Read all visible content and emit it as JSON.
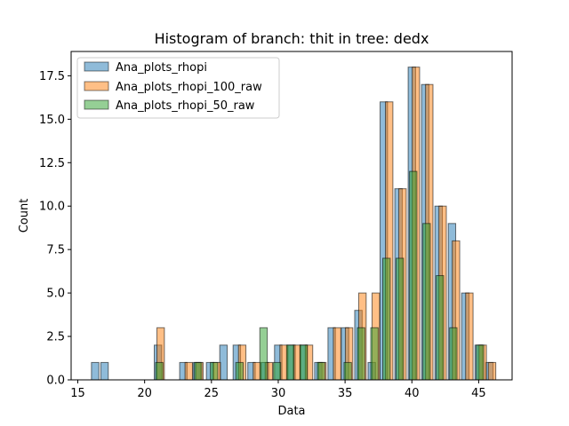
{
  "chart_data": {
    "type": "bar",
    "title": "Histogram of branch: thit in tree: dedx",
    "xlabel": "Data",
    "ylabel": "Count",
    "xlim": [
      14.5,
      47.5
    ],
    "ylim": [
      0,
      18.9
    ],
    "xticks": [
      15,
      20,
      25,
      30,
      35,
      40,
      45
    ],
    "yticks": [
      0.0,
      2.5,
      5.0,
      7.5,
      10.0,
      12.5,
      15.0,
      17.5
    ],
    "legend_position": "upper-left",
    "series": [
      {
        "name": "Ana_plots_rhopi",
        "color": "#1f77b4",
        "bars": [
          {
            "x": 16.3,
            "value": 1
          },
          {
            "x": 17.0,
            "value": 1
          },
          {
            "x": 21.0,
            "value": 2
          },
          {
            "x": 22.9,
            "value": 1
          },
          {
            "x": 23.9,
            "value": 1
          },
          {
            "x": 24.9,
            "value": 1
          },
          {
            "x": 25.9,
            "value": 2
          },
          {
            "x": 26.9,
            "value": 2
          },
          {
            "x": 28.0,
            "value": 1
          },
          {
            "x": 29.0,
            "value": 1
          },
          {
            "x": 30.0,
            "value": 2
          },
          {
            "x": 31.0,
            "value": 2
          },
          {
            "x": 31.9,
            "value": 2
          },
          {
            "x": 33.0,
            "value": 1
          },
          {
            "x": 34.0,
            "value": 3
          },
          {
            "x": 35.0,
            "value": 3
          },
          {
            "x": 36.0,
            "value": 4
          },
          {
            "x": 37.0,
            "value": 1
          },
          {
            "x": 37.9,
            "value": 16
          },
          {
            "x": 39.0,
            "value": 11
          },
          {
            "x": 40.0,
            "value": 18
          },
          {
            "x": 41.0,
            "value": 17
          },
          {
            "x": 42.0,
            "value": 10
          },
          {
            "x": 43.0,
            "value": 9
          },
          {
            "x": 44.0,
            "value": 5
          },
          {
            "x": 45.0,
            "value": 2
          },
          {
            "x": 45.8,
            "value": 1
          }
        ]
      },
      {
        "name": "Ana_plots_rhopi_100_raw",
        "color": "#ff7f0e",
        "bars": [
          {
            "x": 21.2,
            "value": 3
          },
          {
            "x": 23.3,
            "value": 1
          },
          {
            "x": 24.1,
            "value": 1
          },
          {
            "x": 25.4,
            "value": 1
          },
          {
            "x": 27.3,
            "value": 2
          },
          {
            "x": 28.4,
            "value": 1
          },
          {
            "x": 29.3,
            "value": 1
          },
          {
            "x": 30.4,
            "value": 2
          },
          {
            "x": 31.4,
            "value": 2
          },
          {
            "x": 32.3,
            "value": 2
          },
          {
            "x": 33.3,
            "value": 1
          },
          {
            "x": 34.4,
            "value": 3
          },
          {
            "x": 35.3,
            "value": 3
          },
          {
            "x": 36.3,
            "value": 5
          },
          {
            "x": 37.3,
            "value": 5
          },
          {
            "x": 38.3,
            "value": 16
          },
          {
            "x": 39.3,
            "value": 11
          },
          {
            "x": 40.3,
            "value": 18
          },
          {
            "x": 41.3,
            "value": 17
          },
          {
            "x": 42.3,
            "value": 10
          },
          {
            "x": 43.3,
            "value": 8
          },
          {
            "x": 44.3,
            "value": 5
          },
          {
            "x": 45.3,
            "value": 2
          },
          {
            "x": 46.0,
            "value": 1
          }
        ]
      },
      {
        "name": "Ana_plots_rhopi_50_raw",
        "color": "#2ca02c",
        "bars": [
          {
            "x": 21.1,
            "value": 1
          },
          {
            "x": 24.0,
            "value": 1
          },
          {
            "x": 25.2,
            "value": 1
          },
          {
            "x": 27.1,
            "value": 1
          },
          {
            "x": 28.9,
            "value": 3
          },
          {
            "x": 29.9,
            "value": 1
          },
          {
            "x": 30.9,
            "value": 2
          },
          {
            "x": 31.9,
            "value": 2
          },
          {
            "x": 33.2,
            "value": 1
          },
          {
            "x": 35.2,
            "value": 1
          },
          {
            "x": 36.2,
            "value": 3
          },
          {
            "x": 37.2,
            "value": 3
          },
          {
            "x": 38.1,
            "value": 7
          },
          {
            "x": 39.1,
            "value": 7
          },
          {
            "x": 40.1,
            "value": 12
          },
          {
            "x": 41.1,
            "value": 9
          },
          {
            "x": 42.1,
            "value": 6
          },
          {
            "x": 43.1,
            "value": 3
          },
          {
            "x": 45.1,
            "value": 2
          }
        ]
      }
    ]
  }
}
